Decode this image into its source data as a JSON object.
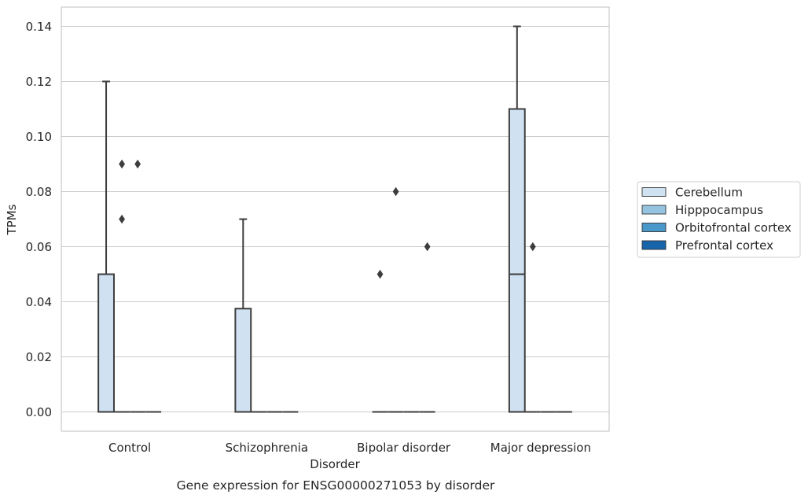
{
  "chart_data": {
    "type": "box",
    "title": "",
    "caption": "Gene expression for ENSG00000271053 by disorder",
    "xlabel": "Disorder",
    "ylabel": "TPMs",
    "categories": [
      "Control",
      "Schizophrenia",
      "Bipolar disorder",
      "Major depression"
    ],
    "ylim": [
      -0.007,
      0.147
    ],
    "yticks": [
      0.0,
      0.02,
      0.04,
      0.06,
      0.08,
      0.1,
      0.12,
      0.14
    ],
    "ytick_labels": [
      "0.00",
      "0.02",
      "0.04",
      "0.06",
      "0.08",
      "0.10",
      "0.12",
      "0.14"
    ],
    "grid": "horizontal",
    "legend_position": "right",
    "series": [
      {
        "name": "Cerebellum",
        "color": "#d0e1f2",
        "boxes": [
          {
            "q1": 0.0,
            "median": 0.0,
            "q3": 0.05,
            "whisker_low": 0.0,
            "whisker_high": 0.12,
            "outliers": []
          },
          {
            "q1": 0.0,
            "median": 0.0,
            "q3": 0.0375,
            "whisker_low": 0.0,
            "whisker_high": 0.07,
            "outliers": []
          },
          {
            "q1": 0.0,
            "median": 0.0,
            "q3": 0.0,
            "whisker_low": 0.0,
            "whisker_high": 0.0,
            "outliers": [
              0.05
            ]
          },
          {
            "q1": 0.0,
            "median": 0.05,
            "q3": 0.11,
            "whisker_low": 0.0,
            "whisker_high": 0.14,
            "outliers": []
          }
        ]
      },
      {
        "name": "Hipppocampus",
        "color": "#94c4df",
        "boxes": [
          {
            "q1": 0.0,
            "median": 0.0,
            "q3": 0.0,
            "whisker_low": 0.0,
            "whisker_high": 0.0,
            "outliers": [
              0.07,
              0.09
            ]
          },
          {
            "q1": 0.0,
            "median": 0.0,
            "q3": 0.0,
            "whisker_low": 0.0,
            "whisker_high": 0.0,
            "outliers": []
          },
          {
            "q1": 0.0,
            "median": 0.0,
            "q3": 0.0,
            "whisker_low": 0.0,
            "whisker_high": 0.0,
            "outliers": [
              0.08
            ]
          },
          {
            "q1": 0.0,
            "median": 0.0,
            "q3": 0.0,
            "whisker_low": 0.0,
            "whisker_high": 0.0,
            "outliers": [
              0.06
            ]
          }
        ]
      },
      {
        "name": "Orbitofrontal cortex",
        "color": "#4a98c9",
        "boxes": [
          {
            "q1": 0.0,
            "median": 0.0,
            "q3": 0.0,
            "whisker_low": 0.0,
            "whisker_high": 0.0,
            "outliers": [
              0.09
            ]
          },
          {
            "q1": 0.0,
            "median": 0.0,
            "q3": 0.0,
            "whisker_low": 0.0,
            "whisker_high": 0.0,
            "outliers": []
          },
          {
            "q1": 0.0,
            "median": 0.0,
            "q3": 0.0,
            "whisker_low": 0.0,
            "whisker_high": 0.0,
            "outliers": []
          },
          {
            "q1": 0.0,
            "median": 0.0,
            "q3": 0.0,
            "whisker_low": 0.0,
            "whisker_high": 0.0,
            "outliers": []
          }
        ]
      },
      {
        "name": "Prefrontal cortex",
        "color": "#1764ab",
        "boxes": [
          {
            "q1": 0.0,
            "median": 0.0,
            "q3": 0.0,
            "whisker_low": 0.0,
            "whisker_high": 0.0,
            "outliers": []
          },
          {
            "q1": 0.0,
            "median": 0.0,
            "q3": 0.0,
            "whisker_low": 0.0,
            "whisker_high": 0.0,
            "outliers": []
          },
          {
            "q1": 0.0,
            "median": 0.0,
            "q3": 0.0,
            "whisker_low": 0.0,
            "whisker_high": 0.0,
            "outliers": [
              0.06
            ]
          },
          {
            "q1": 0.0,
            "median": 0.0,
            "q3": 0.0,
            "whisker_low": 0.0,
            "whisker_high": 0.0,
            "outliers": []
          }
        ]
      }
    ]
  },
  "colors": {
    "box_edge": "#3d3d3d",
    "grid": "#cccccc",
    "axes_edge": "#cccccc"
  }
}
